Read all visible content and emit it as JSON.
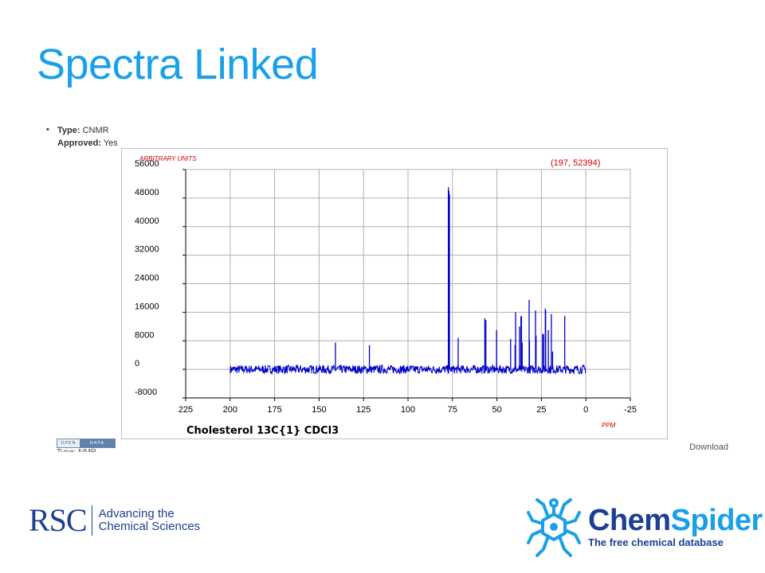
{
  "slide": {
    "title": "Spectra Linked"
  },
  "record": {
    "bullet": "•",
    "type_label": "Type:",
    "type_value": "CNMR",
    "approved_label": "Approved:",
    "approved_value": "Yes"
  },
  "badge": {
    "left": "OPEN",
    "right": "DATA"
  },
  "clipped_text": "Type: NMR",
  "download_label": "Download",
  "logos": {
    "rsc_mark": "RSC",
    "rsc_tagline_1": "Advancing the",
    "rsc_tagline_2": "Chemical Sciences",
    "chemspider_name_1": "Chem",
    "chemspider_name_2": "Spider",
    "chemspider_subtitle": "The free chemical database"
  },
  "colors": {
    "title": "#1aa0e8",
    "spectrum_line": "#0000cc",
    "axis_unit_label": "#cc0000",
    "grid": "#b0b0b0",
    "rsc_blue": "#1c3f94"
  },
  "chart_data": {
    "type": "line",
    "title": "Cholesterol 13C{1} CDCl3",
    "ylabel": "ARBITRARY UNITS",
    "xlabel": "PPM",
    "cursor_readout": "(197, 52394)",
    "xlim": [
      225,
      -25
    ],
    "ylim": [
      -8000,
      56000
    ],
    "x_ticks": [
      225,
      200,
      175,
      150,
      125,
      100,
      75,
      50,
      25,
      0,
      -25
    ],
    "y_ticks": [
      56000,
      48000,
      40000,
      32000,
      24000,
      16000,
      8000,
      0,
      -8000
    ],
    "grid": true,
    "x_direction": "reversed",
    "baseline_range": [
      200,
      0
    ],
    "baseline_noise": 1200,
    "peaks": [
      {
        "x": 140.8,
        "y": 7500
      },
      {
        "x": 121.7,
        "y": 6800
      },
      {
        "x": 77.3,
        "y": 51000
      },
      {
        "x": 77.0,
        "y": 50000
      },
      {
        "x": 76.7,
        "y": 49000
      },
      {
        "x": 71.8,
        "y": 8800
      },
      {
        "x": 56.8,
        "y": 14300
      },
      {
        "x": 56.2,
        "y": 13800
      },
      {
        "x": 50.2,
        "y": 11000
      },
      {
        "x": 42.3,
        "y": 8500
      },
      {
        "x": 39.8,
        "y": 6800
      },
      {
        "x": 39.5,
        "y": 16000
      },
      {
        "x": 37.3,
        "y": 12000
      },
      {
        "x": 36.5,
        "y": 14800
      },
      {
        "x": 36.2,
        "y": 15000
      },
      {
        "x": 35.8,
        "y": 7500
      },
      {
        "x": 31.9,
        "y": 19500
      },
      {
        "x": 31.7,
        "y": 8000
      },
      {
        "x": 28.3,
        "y": 16500
      },
      {
        "x": 28.0,
        "y": 9500
      },
      {
        "x": 24.3,
        "y": 10000
      },
      {
        "x": 23.8,
        "y": 9800
      },
      {
        "x": 22.8,
        "y": 17000
      },
      {
        "x": 22.6,
        "y": 16500
      },
      {
        "x": 21.1,
        "y": 11000
      },
      {
        "x": 19.4,
        "y": 15500
      },
      {
        "x": 18.7,
        "y": 5000
      },
      {
        "x": 11.9,
        "y": 15000
      }
    ]
  }
}
